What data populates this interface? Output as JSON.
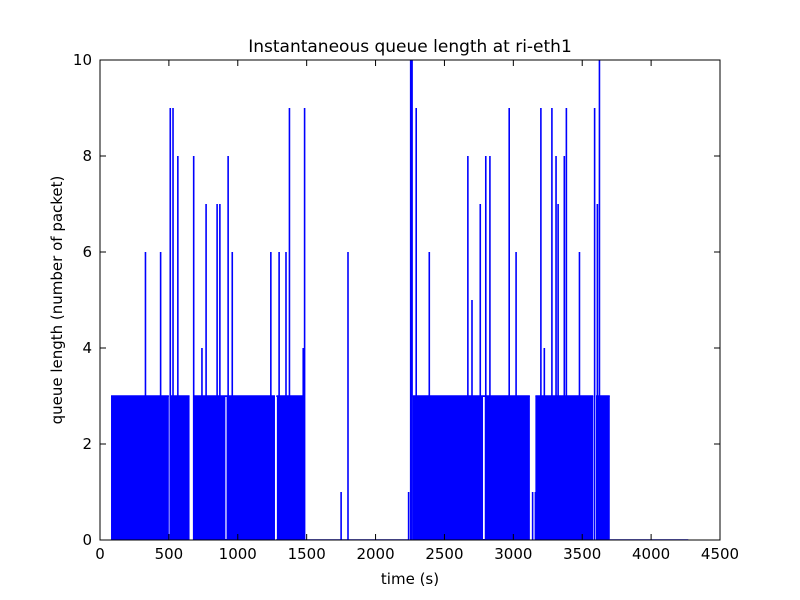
{
  "chart_data": {
    "type": "line",
    "title": "Instantaneous queue length at ri-eth1",
    "xlabel": "time (s)",
    "ylabel": "queue length (number of packet)",
    "xlim": [
      0,
      4500
    ],
    "ylim": [
      0,
      10
    ],
    "xticks": [
      0,
      500,
      1000,
      1500,
      2000,
      2500,
      3000,
      3500,
      4000,
      4500
    ],
    "yticks": [
      0,
      2,
      4,
      6,
      8,
      10
    ],
    "grid": false,
    "color": "#0000ff",
    "series": [
      {
        "baseline_level": 3,
        "active_periods": [
          [
            80,
            500
          ],
          [
            510,
            650
          ],
          [
            680,
            1270
          ],
          [
            1280,
            1480
          ],
          [
            2270,
            3120
          ],
          [
            3160,
            3580
          ],
          [
            3600,
            3700
          ]
        ],
        "idle_periods": [
          [
            1480,
            2240
          ],
          [
            3700,
            4270
          ]
        ],
        "spikes": [
          {
            "x": 330,
            "y": 6
          },
          {
            "x": 440,
            "y": 6
          },
          {
            "x": 510,
            "y": 9
          },
          {
            "x": 530,
            "y": 9
          },
          {
            "x": 565,
            "y": 8
          },
          {
            "x": 680,
            "y": 8
          },
          {
            "x": 740,
            "y": 4
          },
          {
            "x": 770,
            "y": 7
          },
          {
            "x": 850,
            "y": 7
          },
          {
            "x": 870,
            "y": 7
          },
          {
            "x": 930,
            "y": 8
          },
          {
            "x": 960,
            "y": 6
          },
          {
            "x": 1240,
            "y": 6
          },
          {
            "x": 1300,
            "y": 6
          },
          {
            "x": 1350,
            "y": 6
          },
          {
            "x": 1375,
            "y": 9
          },
          {
            "x": 1475,
            "y": 4
          },
          {
            "x": 1485,
            "y": 9
          },
          {
            "x": 1750,
            "y": 1
          },
          {
            "x": 1800,
            "y": 6
          },
          {
            "x": 2240,
            "y": 1
          },
          {
            "x": 2255,
            "y": 10
          },
          {
            "x": 2265,
            "y": 10
          },
          {
            "x": 2295,
            "y": 9
          },
          {
            "x": 2390,
            "y": 6
          },
          {
            "x": 2670,
            "y": 8
          },
          {
            "x": 2700,
            "y": 5
          },
          {
            "x": 2760,
            "y": 7
          },
          {
            "x": 2800,
            "y": 8
          },
          {
            "x": 2830,
            "y": 8
          },
          {
            "x": 2970,
            "y": 9
          },
          {
            "x": 3020,
            "y": 6
          },
          {
            "x": 3140,
            "y": 1
          },
          {
            "x": 3160,
            "y": 1
          },
          {
            "x": 3200,
            "y": 9
          },
          {
            "x": 3225,
            "y": 4
          },
          {
            "x": 3280,
            "y": 9
          },
          {
            "x": 3310,
            "y": 8
          },
          {
            "x": 3325,
            "y": 7
          },
          {
            "x": 3370,
            "y": 8
          },
          {
            "x": 3385,
            "y": 9
          },
          {
            "x": 3480,
            "y": 6
          },
          {
            "x": 3590,
            "y": 9
          },
          {
            "x": 3610,
            "y": 7
          },
          {
            "x": 3625,
            "y": 10
          }
        ]
      }
    ]
  }
}
